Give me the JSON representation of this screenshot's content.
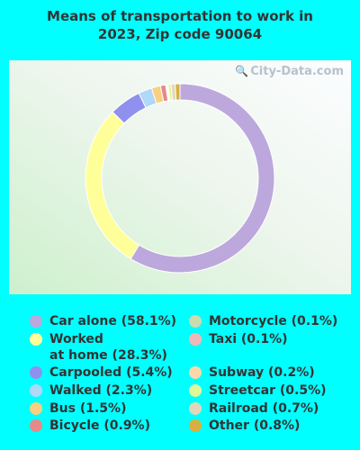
{
  "title_line1": "Means of transportation to work in",
  "title_line2": "2023, Zip code 90064",
  "watermark": "City-Data.com",
  "chart_data": {
    "type": "pie",
    "title": "Means of transportation to work in 2023, Zip code 90064",
    "donut": true,
    "legend_placement": "bottom",
    "slices": [
      {
        "label": "Car alone (58.1%)",
        "value": 58.1,
        "color": "#bca8dc"
      },
      {
        "label": "Worked\nat home (28.3%)",
        "value": 28.3,
        "color": "#ffff99"
      },
      {
        "label": "Carpooled (5.4%)",
        "value": 5.4,
        "color": "#9090ee"
      },
      {
        "label": "Walked (2.3%)",
        "value": 2.3,
        "color": "#b0d8f8"
      },
      {
        "label": "Bus (1.5%)",
        "value": 1.5,
        "color": "#f8d080"
      },
      {
        "label": "Bicycle (0.9%)",
        "value": 0.9,
        "color": "#e88888"
      },
      {
        "label": "Motorcycle (0.1%)",
        "value": 0.1,
        "color": "#c8dcb0"
      },
      {
        "label": "Taxi (0.1%)",
        "value": 0.1,
        "color": "#f0b8b8"
      },
      {
        "label": "Subway (0.2%)",
        "value": 0.2,
        "color": "#fcd8a8"
      },
      {
        "label": "Streetcar (0.5%)",
        "value": 0.5,
        "color": "#e0f898"
      },
      {
        "label": "Railroad (0.7%)",
        "value": 0.7,
        "color": "#e0d8b8"
      },
      {
        "label": "Other (0.8%)",
        "value": 0.8,
        "color": "#d8b040"
      }
    ]
  }
}
